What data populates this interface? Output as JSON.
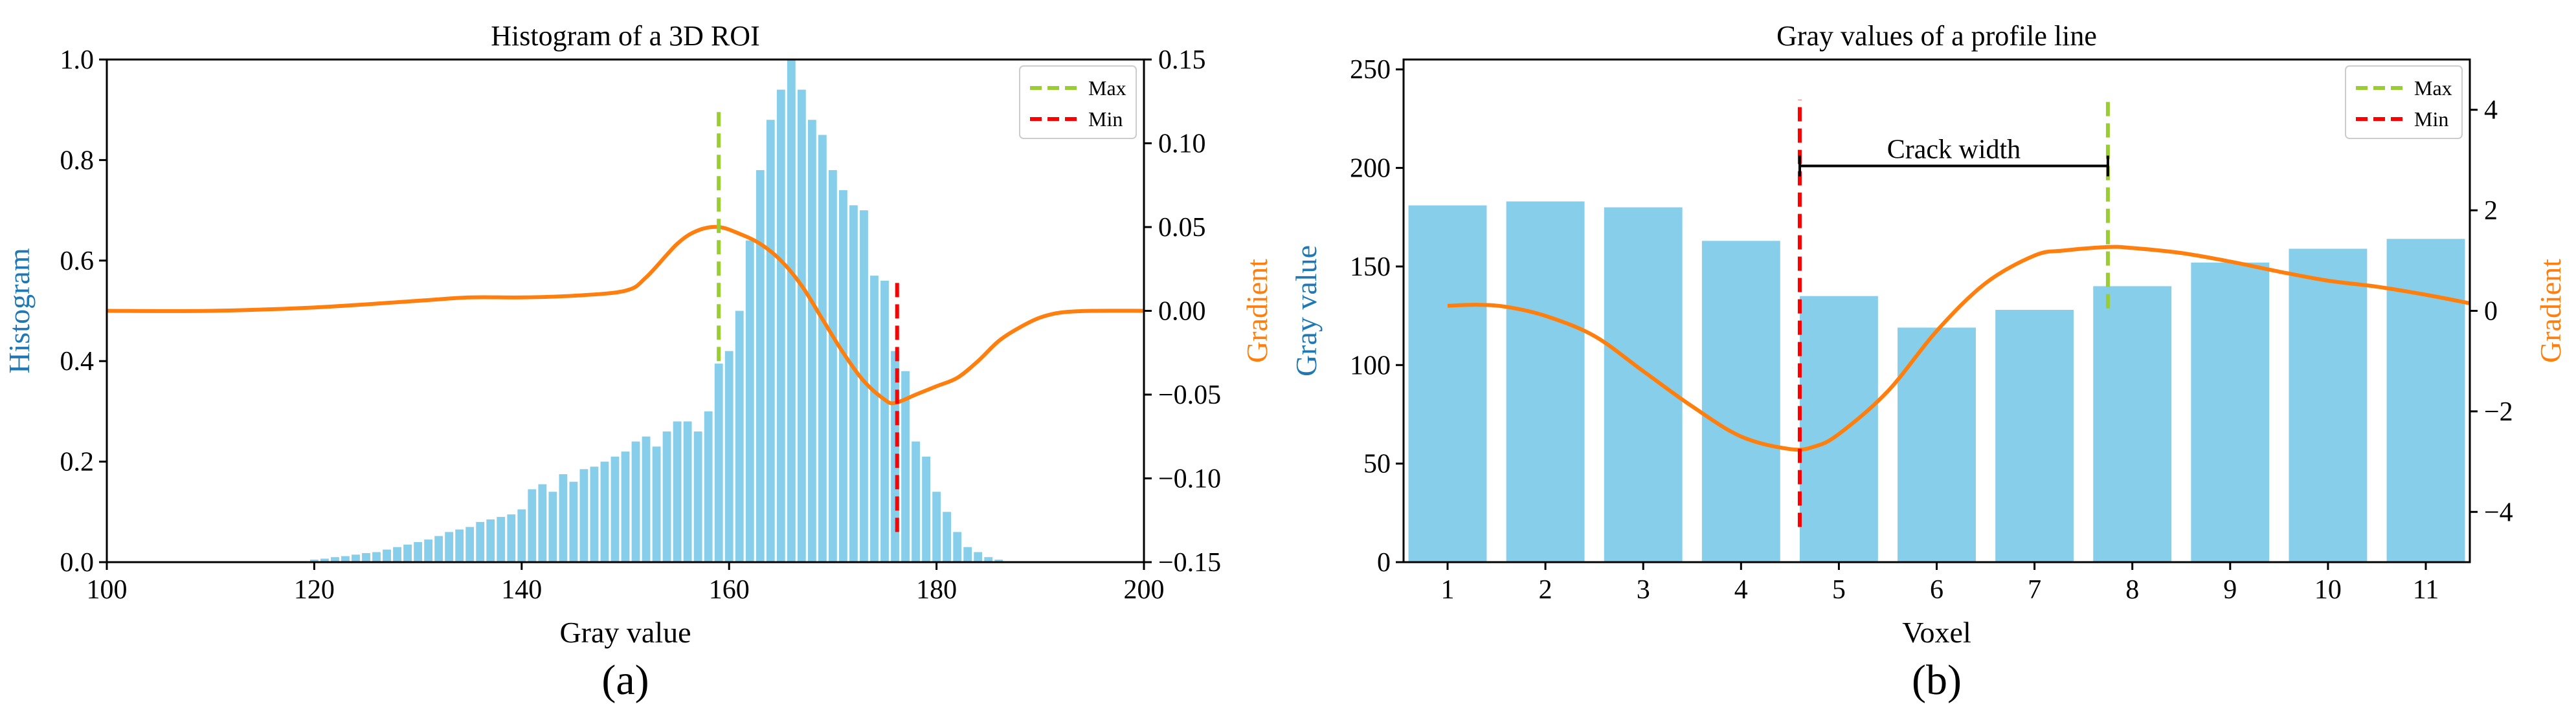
{
  "colors": {
    "bar": "#87ceeb",
    "gradient_line": "#ff7f0e",
    "max_line": "#9acd32",
    "min_line": "#ff0000",
    "left_axis_label": "#1f77b4",
    "right_axis_label": "#ff7f0e",
    "axis": "#000000"
  },
  "chart_data": [
    {
      "type": "bar",
      "panel_label": "(a)",
      "title": "Histogram of a 3D ROI",
      "xlabel": "Gray value",
      "ylabel": "Histogram",
      "y2label": "Gradient",
      "xlim": [
        100,
        200
      ],
      "ylim": [
        0,
        1.0
      ],
      "y2lim": [
        -0.15,
        0.15
      ],
      "xticks": [
        100,
        120,
        140,
        160,
        180,
        200
      ],
      "xtick_labels": [
        "100",
        "120",
        "140",
        "160",
        "180",
        "200"
      ],
      "yticks": [
        0.0,
        0.2,
        0.4,
        0.6,
        0.8,
        1.0
      ],
      "ytick_labels": [
        "0.0",
        "0.2",
        "0.4",
        "0.6",
        "0.8",
        "1.0"
      ],
      "y2ticks": [
        -0.15,
        -0.1,
        -0.05,
        0.0,
        0.05,
        0.1,
        0.15
      ],
      "y2tick_labels": [
        "−0.15",
        "−0.10",
        "−0.05",
        "0.00",
        "0.05",
        "0.10",
        "0.15"
      ],
      "bars": {
        "x": [
          120,
          121,
          122,
          123,
          124,
          125,
          126,
          127,
          128,
          129,
          130,
          131,
          132,
          133,
          134,
          135,
          136,
          137,
          138,
          139,
          140,
          141,
          142,
          143,
          144,
          145,
          146,
          147,
          148,
          149,
          150,
          151,
          152,
          153,
          154,
          155,
          156,
          157,
          158,
          159,
          160,
          161,
          162,
          163,
          164,
          165,
          166,
          167,
          168,
          169,
          170,
          171,
          172,
          173,
          174,
          175,
          176,
          177,
          178,
          179,
          180,
          181,
          182,
          183,
          184,
          185,
          186,
          187
        ],
        "values": [
          0.005,
          0.007,
          0.01,
          0.012,
          0.015,
          0.018,
          0.02,
          0.025,
          0.03,
          0.035,
          0.04,
          0.045,
          0.052,
          0.06,
          0.065,
          0.07,
          0.08,
          0.085,
          0.09,
          0.095,
          0.105,
          0.145,
          0.155,
          0.14,
          0.175,
          0.16,
          0.185,
          0.19,
          0.2,
          0.21,
          0.22,
          0.24,
          0.25,
          0.23,
          0.26,
          0.28,
          0.28,
          0.26,
          0.3,
          0.395,
          0.42,
          0.5,
          0.64,
          0.78,
          0.88,
          0.94,
          1.0,
          0.94,
          0.88,
          0.85,
          0.78,
          0.74,
          0.71,
          0.7,
          0.57,
          0.56,
          0.42,
          0.38,
          0.24,
          0.21,
          0.14,
          0.1,
          0.06,
          0.03,
          0.02,
          0.01,
          0.005,
          0.002
        ]
      },
      "gradient": {
        "x": [
          100,
          110,
          120,
          130,
          135,
          140,
          145,
          150,
          152,
          155,
          157,
          159,
          161,
          163,
          165,
          167,
          169,
          171,
          173,
          175,
          176,
          178,
          180,
          182,
          184,
          186,
          188,
          190,
          192,
          195,
          200
        ],
        "y": [
          0.0,
          0.0,
          0.002,
          0.006,
          0.008,
          0.008,
          0.009,
          0.012,
          0.02,
          0.04,
          0.048,
          0.05,
          0.046,
          0.04,
          0.03,
          0.015,
          -0.005,
          -0.025,
          -0.042,
          -0.053,
          -0.055,
          -0.05,
          -0.045,
          -0.04,
          -0.03,
          -0.018,
          -0.01,
          -0.004,
          -0.001,
          0.0,
          0.0
        ]
      },
      "vlines": [
        {
          "label": "Max",
          "x": 159,
          "y_from": 0.4,
          "y_to": 0.9,
          "color_key": "max_line"
        },
        {
          "label": "Min",
          "x": 176.2,
          "y_from": 0.06,
          "y_to": 0.56,
          "color_key": "min_line"
        }
      ],
      "legend": {
        "position": "top-right",
        "entries": [
          "Max",
          "Min"
        ]
      }
    },
    {
      "type": "bar",
      "panel_label": "(b)",
      "title": "Gray values of a profile line",
      "xlabel": "Voxel",
      "ylabel": "Gray value",
      "y2label": "Gradient",
      "xlim": [
        0.55,
        11.45
      ],
      "ylim": [
        0,
        255
      ],
      "y2lim": [
        -5,
        5
      ],
      "xticks": [
        1,
        2,
        3,
        4,
        5,
        6,
        7,
        8,
        9,
        10,
        11
      ],
      "xtick_labels": [
        "1",
        "2",
        "3",
        "4",
        "5",
        "6",
        "7",
        "8",
        "9",
        "10",
        "11"
      ],
      "yticks": [
        0,
        50,
        100,
        150,
        200,
        250
      ],
      "ytick_labels": [
        "0",
        "50",
        "100",
        "150",
        "200",
        "250"
      ],
      "y2ticks": [
        -4,
        -2,
        0,
        2,
        4
      ],
      "y2tick_labels": [
        "−4",
        "−2",
        "0",
        "2",
        "4"
      ],
      "bars": {
        "x": [
          1,
          2,
          3,
          4,
          5,
          6,
          7,
          8,
          9,
          10,
          11
        ],
        "values": [
          181,
          183,
          180,
          163,
          135,
          119,
          128,
          140,
          152,
          159,
          164
        ]
      },
      "gradient": {
        "x": [
          1,
          1.3,
          1.6,
          2,
          2.5,
          3,
          3.5,
          4,
          4.5,
          4.75,
          5,
          5.5,
          6,
          6.5,
          7,
          7.3,
          7.75,
          8,
          8.5,
          9,
          9.5,
          10,
          10.5,
          11,
          11.45
        ],
        "y": [
          0.1,
          0.12,
          0.08,
          -0.1,
          -0.5,
          -1.2,
          -1.9,
          -2.5,
          -2.75,
          -2.7,
          -2.45,
          -1.6,
          -0.4,
          0.55,
          1.1,
          1.2,
          1.27,
          1.25,
          1.15,
          0.98,
          0.78,
          0.6,
          0.48,
          0.32,
          0.15
        ]
      },
      "vlines": [
        {
          "label": "Min",
          "x": 4.6,
          "y2_from": -4.3,
          "y2_to": 4.2,
          "color_key": "min_line"
        },
        {
          "label": "Max",
          "x": 7.75,
          "y2_from": 0.05,
          "y2_to": 4.2,
          "color_key": "max_line"
        }
      ],
      "annotation": {
        "text": "Crack width",
        "x_from": 4.6,
        "x_to": 7.75,
        "y": 201
      },
      "legend": {
        "position": "top-right",
        "entries": [
          "Max",
          "Min"
        ]
      }
    }
  ]
}
